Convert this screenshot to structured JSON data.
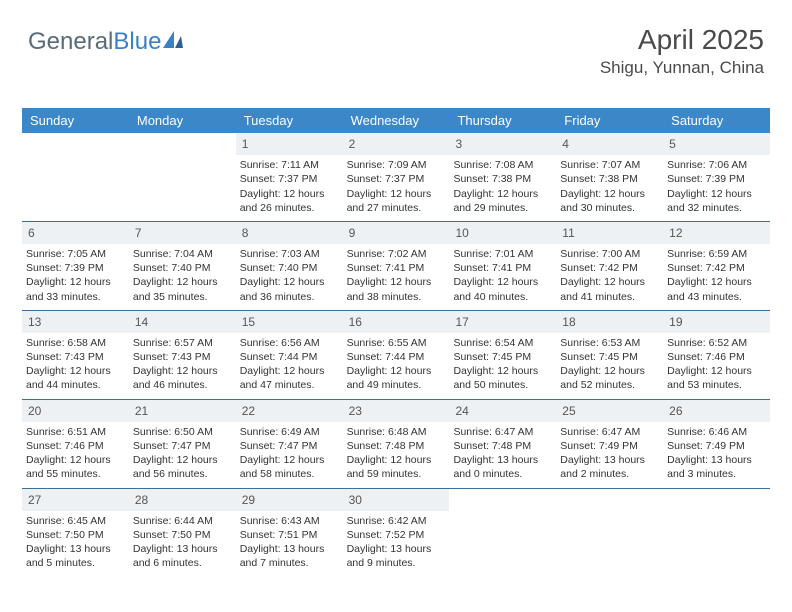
{
  "logo": {
    "text1": "General",
    "text2": "Blue"
  },
  "header": {
    "title": "April 2025",
    "location": "Shigu, Yunnan, China"
  },
  "colors": {
    "header_bg": "#3b87c8",
    "header_text": "#ffffff",
    "daynum_bg": "#eef1f4",
    "week_border": "#3b6f9b",
    "text": "#333333",
    "logo_gray": "#5a6a78",
    "logo_blue": "#3b7fc4"
  },
  "day_names": [
    "Sunday",
    "Monday",
    "Tuesday",
    "Wednesday",
    "Thursday",
    "Friday",
    "Saturday"
  ],
  "weeks": [
    [
      {
        "n": "",
        "empty": true
      },
      {
        "n": "",
        "empty": true
      },
      {
        "n": "1",
        "sr": "Sunrise: 7:11 AM",
        "ss": "Sunset: 7:37 PM",
        "dl1": "Daylight: 12 hours",
        "dl2": "and 26 minutes."
      },
      {
        "n": "2",
        "sr": "Sunrise: 7:09 AM",
        "ss": "Sunset: 7:37 PM",
        "dl1": "Daylight: 12 hours",
        "dl2": "and 27 minutes."
      },
      {
        "n": "3",
        "sr": "Sunrise: 7:08 AM",
        "ss": "Sunset: 7:38 PM",
        "dl1": "Daylight: 12 hours",
        "dl2": "and 29 minutes."
      },
      {
        "n": "4",
        "sr": "Sunrise: 7:07 AM",
        "ss": "Sunset: 7:38 PM",
        "dl1": "Daylight: 12 hours",
        "dl2": "and 30 minutes."
      },
      {
        "n": "5",
        "sr": "Sunrise: 7:06 AM",
        "ss": "Sunset: 7:39 PM",
        "dl1": "Daylight: 12 hours",
        "dl2": "and 32 minutes."
      }
    ],
    [
      {
        "n": "6",
        "sr": "Sunrise: 7:05 AM",
        "ss": "Sunset: 7:39 PM",
        "dl1": "Daylight: 12 hours",
        "dl2": "and 33 minutes."
      },
      {
        "n": "7",
        "sr": "Sunrise: 7:04 AM",
        "ss": "Sunset: 7:40 PM",
        "dl1": "Daylight: 12 hours",
        "dl2": "and 35 minutes."
      },
      {
        "n": "8",
        "sr": "Sunrise: 7:03 AM",
        "ss": "Sunset: 7:40 PM",
        "dl1": "Daylight: 12 hours",
        "dl2": "and 36 minutes."
      },
      {
        "n": "9",
        "sr": "Sunrise: 7:02 AM",
        "ss": "Sunset: 7:41 PM",
        "dl1": "Daylight: 12 hours",
        "dl2": "and 38 minutes."
      },
      {
        "n": "10",
        "sr": "Sunrise: 7:01 AM",
        "ss": "Sunset: 7:41 PM",
        "dl1": "Daylight: 12 hours",
        "dl2": "and 40 minutes."
      },
      {
        "n": "11",
        "sr": "Sunrise: 7:00 AM",
        "ss": "Sunset: 7:42 PM",
        "dl1": "Daylight: 12 hours",
        "dl2": "and 41 minutes."
      },
      {
        "n": "12",
        "sr": "Sunrise: 6:59 AM",
        "ss": "Sunset: 7:42 PM",
        "dl1": "Daylight: 12 hours",
        "dl2": "and 43 minutes."
      }
    ],
    [
      {
        "n": "13",
        "sr": "Sunrise: 6:58 AM",
        "ss": "Sunset: 7:43 PM",
        "dl1": "Daylight: 12 hours",
        "dl2": "and 44 minutes."
      },
      {
        "n": "14",
        "sr": "Sunrise: 6:57 AM",
        "ss": "Sunset: 7:43 PM",
        "dl1": "Daylight: 12 hours",
        "dl2": "and 46 minutes."
      },
      {
        "n": "15",
        "sr": "Sunrise: 6:56 AM",
        "ss": "Sunset: 7:44 PM",
        "dl1": "Daylight: 12 hours",
        "dl2": "and 47 minutes."
      },
      {
        "n": "16",
        "sr": "Sunrise: 6:55 AM",
        "ss": "Sunset: 7:44 PM",
        "dl1": "Daylight: 12 hours",
        "dl2": "and 49 minutes."
      },
      {
        "n": "17",
        "sr": "Sunrise: 6:54 AM",
        "ss": "Sunset: 7:45 PM",
        "dl1": "Daylight: 12 hours",
        "dl2": "and 50 minutes."
      },
      {
        "n": "18",
        "sr": "Sunrise: 6:53 AM",
        "ss": "Sunset: 7:45 PM",
        "dl1": "Daylight: 12 hours",
        "dl2": "and 52 minutes."
      },
      {
        "n": "19",
        "sr": "Sunrise: 6:52 AM",
        "ss": "Sunset: 7:46 PM",
        "dl1": "Daylight: 12 hours",
        "dl2": "and 53 minutes."
      }
    ],
    [
      {
        "n": "20",
        "sr": "Sunrise: 6:51 AM",
        "ss": "Sunset: 7:46 PM",
        "dl1": "Daylight: 12 hours",
        "dl2": "and 55 minutes."
      },
      {
        "n": "21",
        "sr": "Sunrise: 6:50 AM",
        "ss": "Sunset: 7:47 PM",
        "dl1": "Daylight: 12 hours",
        "dl2": "and 56 minutes."
      },
      {
        "n": "22",
        "sr": "Sunrise: 6:49 AM",
        "ss": "Sunset: 7:47 PM",
        "dl1": "Daylight: 12 hours",
        "dl2": "and 58 minutes."
      },
      {
        "n": "23",
        "sr": "Sunrise: 6:48 AM",
        "ss": "Sunset: 7:48 PM",
        "dl1": "Daylight: 12 hours",
        "dl2": "and 59 minutes."
      },
      {
        "n": "24",
        "sr": "Sunrise: 6:47 AM",
        "ss": "Sunset: 7:48 PM",
        "dl1": "Daylight: 13 hours",
        "dl2": "and 0 minutes."
      },
      {
        "n": "25",
        "sr": "Sunrise: 6:47 AM",
        "ss": "Sunset: 7:49 PM",
        "dl1": "Daylight: 13 hours",
        "dl2": "and 2 minutes."
      },
      {
        "n": "26",
        "sr": "Sunrise: 6:46 AM",
        "ss": "Sunset: 7:49 PM",
        "dl1": "Daylight: 13 hours",
        "dl2": "and 3 minutes."
      }
    ],
    [
      {
        "n": "27",
        "sr": "Sunrise: 6:45 AM",
        "ss": "Sunset: 7:50 PM",
        "dl1": "Daylight: 13 hours",
        "dl2": "and 5 minutes."
      },
      {
        "n": "28",
        "sr": "Sunrise: 6:44 AM",
        "ss": "Sunset: 7:50 PM",
        "dl1": "Daylight: 13 hours",
        "dl2": "and 6 minutes."
      },
      {
        "n": "29",
        "sr": "Sunrise: 6:43 AM",
        "ss": "Sunset: 7:51 PM",
        "dl1": "Daylight: 13 hours",
        "dl2": "and 7 minutes."
      },
      {
        "n": "30",
        "sr": "Sunrise: 6:42 AM",
        "ss": "Sunset: 7:52 PM",
        "dl1": "Daylight: 13 hours",
        "dl2": "and 9 minutes."
      },
      {
        "n": "",
        "empty": true
      },
      {
        "n": "",
        "empty": true
      },
      {
        "n": "",
        "empty": true
      }
    ]
  ]
}
